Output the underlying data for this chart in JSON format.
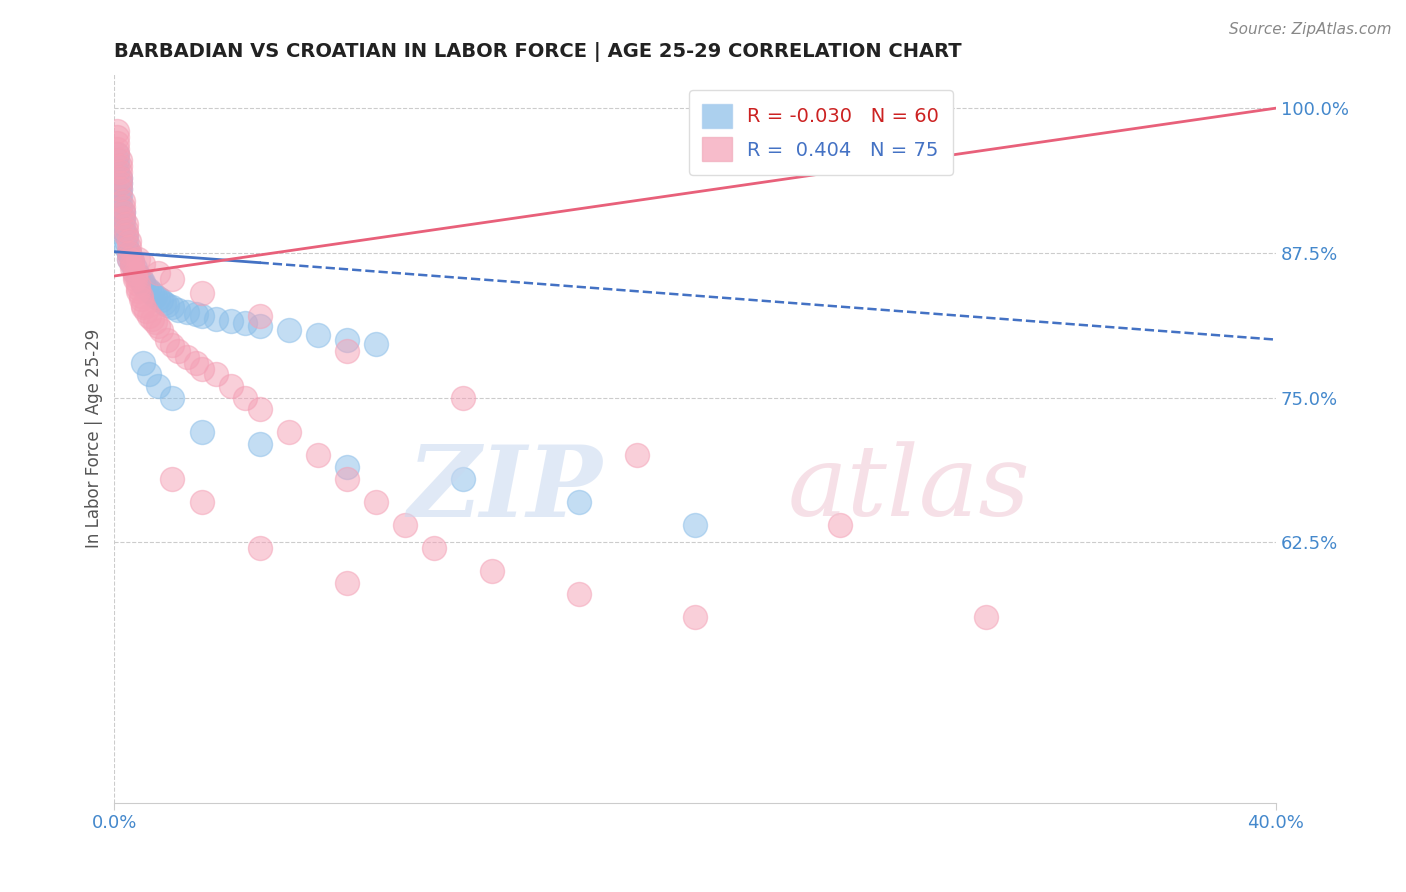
{
  "title": "BARBADIAN VS CROATIAN IN LABOR FORCE | AGE 25-29 CORRELATION CHART",
  "source_text": "Source: ZipAtlas.com",
  "ylabel": "In Labor Force | Age 25-29",
  "xlim": [
    0.0,
    0.4
  ],
  "ylim": [
    0.4,
    1.03
  ],
  "yticks": [
    0.625,
    0.75,
    0.875,
    1.0
  ],
  "ytick_labels": [
    "62.5%",
    "75.0%",
    "87.5%",
    "100.0%"
  ],
  "xticks": [
    0.0,
    0.4
  ],
  "xtick_labels": [
    "0.0%",
    "40.0%"
  ],
  "barbadian_color": "#89bde8",
  "croatian_color": "#f4a0b5",
  "barbadian_R": -0.03,
  "barbadian_N": 60,
  "croatian_R": 0.404,
  "croatian_N": 75,
  "background_color": "#ffffff",
  "grid_color": "#cccccc",
  "barbadian_x": [
    0.001,
    0.001,
    0.001,
    0.001,
    0.002,
    0.002,
    0.002,
    0.002,
    0.002,
    0.002,
    0.003,
    0.003,
    0.003,
    0.003,
    0.004,
    0.004,
    0.004,
    0.005,
    0.005,
    0.005,
    0.006,
    0.006,
    0.007,
    0.007,
    0.008,
    0.008,
    0.009,
    0.01,
    0.01,
    0.011,
    0.012,
    0.013,
    0.014,
    0.015,
    0.016,
    0.017,
    0.018,
    0.02,
    0.022,
    0.025,
    0.028,
    0.03,
    0.035,
    0.04,
    0.045,
    0.05,
    0.06,
    0.07,
    0.08,
    0.09,
    0.01,
    0.012,
    0.015,
    0.02,
    0.03,
    0.05,
    0.08,
    0.12,
    0.16,
    0.2
  ],
  "barbadian_y": [
    0.96,
    0.955,
    0.95,
    0.945,
    0.94,
    0.935,
    0.93,
    0.925,
    0.92,
    0.915,
    0.91,
    0.905,
    0.9,
    0.895,
    0.89,
    0.885,
    0.88,
    0.875,
    0.875,
    0.87,
    0.868,
    0.865,
    0.862,
    0.858,
    0.856,
    0.855,
    0.852,
    0.85,
    0.848,
    0.845,
    0.843,
    0.84,
    0.838,
    0.836,
    0.834,
    0.832,
    0.83,
    0.828,
    0.826,
    0.824,
    0.822,
    0.82,
    0.818,
    0.816,
    0.814,
    0.812,
    0.808,
    0.804,
    0.8,
    0.796,
    0.78,
    0.77,
    0.76,
    0.75,
    0.72,
    0.71,
    0.69,
    0.68,
    0.66,
    0.64
  ],
  "croatian_x": [
    0.001,
    0.001,
    0.001,
    0.001,
    0.001,
    0.002,
    0.002,
    0.002,
    0.002,
    0.002,
    0.002,
    0.003,
    0.003,
    0.003,
    0.003,
    0.004,
    0.004,
    0.004,
    0.005,
    0.005,
    0.005,
    0.005,
    0.006,
    0.006,
    0.006,
    0.007,
    0.007,
    0.007,
    0.008,
    0.008,
    0.008,
    0.009,
    0.009,
    0.01,
    0.01,
    0.011,
    0.012,
    0.013,
    0.014,
    0.015,
    0.016,
    0.018,
    0.02,
    0.022,
    0.025,
    0.028,
    0.03,
    0.035,
    0.04,
    0.045,
    0.05,
    0.06,
    0.07,
    0.08,
    0.09,
    0.1,
    0.11,
    0.13,
    0.16,
    0.2,
    0.008,
    0.01,
    0.015,
    0.02,
    0.03,
    0.05,
    0.08,
    0.12,
    0.18,
    0.25,
    0.02,
    0.03,
    0.05,
    0.08,
    0.3
  ],
  "croatian_y": [
    0.98,
    0.975,
    0.97,
    0.965,
    0.96,
    0.955,
    0.95,
    0.945,
    0.94,
    0.935,
    0.93,
    0.92,
    0.915,
    0.91,
    0.905,
    0.9,
    0.895,
    0.89,
    0.885,
    0.88,
    0.875,
    0.87,
    0.868,
    0.865,
    0.862,
    0.858,
    0.855,
    0.852,
    0.848,
    0.845,
    0.842,
    0.838,
    0.835,
    0.83,
    0.828,
    0.825,
    0.82,
    0.818,
    0.815,
    0.812,
    0.808,
    0.8,
    0.795,
    0.79,
    0.785,
    0.78,
    0.775,
    0.77,
    0.76,
    0.75,
    0.74,
    0.72,
    0.7,
    0.68,
    0.66,
    0.64,
    0.62,
    0.6,
    0.58,
    0.56,
    0.87,
    0.865,
    0.858,
    0.852,
    0.84,
    0.82,
    0.79,
    0.75,
    0.7,
    0.64,
    0.68,
    0.66,
    0.62,
    0.59,
    0.56
  ],
  "barb_trend_x": [
    0.0,
    0.4
  ],
  "barb_trend_y": [
    0.876,
    0.8
  ],
  "croat_trend_x": [
    0.0,
    0.4
  ],
  "croat_trend_y": [
    0.855,
    1.0
  ]
}
